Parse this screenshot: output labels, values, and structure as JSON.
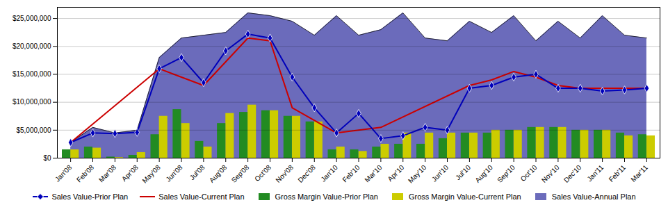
{
  "chart_data": {
    "type": "combo",
    "categories": [
      "Jan'08",
      "Feb'08",
      "Mar'08",
      "Apr'08",
      "May'08",
      "Jun'08",
      "Jul'08",
      "Aug'08",
      "Sep'08",
      "Oct'08",
      "Nov'08",
      "Dec'08",
      "Jan'10",
      "Feb'10",
      "Mar'10",
      "Apr'10",
      "May'10",
      "Jun'10",
      "Jul'10",
      "Aug'10",
      "Sep'10",
      "Oct'10",
      "Nov'10",
      "Dec'10",
      "Jan'11",
      "Feb'11",
      "Mar'11"
    ],
    "series": [
      {
        "name": "Sales Value-Prior Plan",
        "type": "line",
        "color": "#0000BB",
        "marker": "diamond",
        "values": [
          2800000,
          4500000,
          4400000,
          4600000,
          16000000,
          18000000,
          13500000,
          19200000,
          22200000,
          21500000,
          14500000,
          9000000,
          4500000,
          8000000,
          3500000,
          4000000,
          5500000,
          5000000,
          12500000,
          13000000,
          14500000,
          15000000,
          12500000,
          12500000,
          12000000,
          12200000,
          12500000
        ]
      },
      {
        "name": "Sales Value-Current Plan",
        "type": "line",
        "color": "#CC0000",
        "x": [
          "Jan'08",
          "May'08",
          "Jul'08",
          "Sep'08",
          "Oct'08",
          "Nov'08",
          "Jan'10",
          "Mar'10",
          "Jul'10",
          "Aug'10",
          "Sep'10",
          "Oct'10",
          "Nov'10",
          "Dec'10",
          "Mar'11"
        ],
        "values": [
          2800000,
          16000000,
          13000000,
          21500000,
          21000000,
          9000000,
          4500000,
          5500000,
          13000000,
          14000000,
          15500000,
          14500000,
          13000000,
          12500000,
          12500000
        ]
      },
      {
        "name": "Gross Margin Value-Prior Plan",
        "type": "bar",
        "color": "#228B22",
        "values": [
          1500000,
          2000000,
          200000,
          500000,
          4200000,
          8700000,
          3000000,
          6200000,
          8200000,
          8500000,
          7500000,
          6500000,
          1500000,
          1500000,
          2000000,
          2500000,
          2500000,
          3500000,
          4500000,
          4500000,
          5000000,
          5500000,
          5500000,
          5000000,
          5000000,
          4500000,
          4200000
        ]
      },
      {
        "name": "Gross Margin Value-Current Plan",
        "type": "bar",
        "color": "#CCCC00",
        "values": [
          1500000,
          1800000,
          100000,
          1000000,
          7500000,
          6200000,
          2000000,
          8000000,
          9500000,
          8500000,
          7500000,
          6500000,
          2000000,
          1200000,
          2500000,
          4500000,
          4500000,
          4500000,
          4500000,
          5000000,
          5000000,
          5500000,
          5500000,
          5000000,
          5000000,
          4000000,
          4000000
        ]
      },
      {
        "name": "Sales Value-Annual Plan",
        "type": "area",
        "color": "#6B6BBB",
        "values": [
          2800000,
          5500000,
          4500000,
          5000000,
          18000000,
          21500000,
          22000000,
          22500000,
          26000000,
          25500000,
          24500000,
          22000000,
          25500000,
          22000000,
          23000000,
          26000000,
          21500000,
          21000000,
          24500000,
          22500000,
          25500000,
          21000000,
          24500000,
          21500000,
          25500000,
          22000000,
          21500000
        ]
      }
    ],
    "ylim": [
      0,
      27000000
    ],
    "yticks": [
      {
        "value": 0,
        "label": "$0"
      },
      {
        "value": 5000000,
        "label": "$5,000,000"
      },
      {
        "value": 10000000,
        "label": "$10,000,000"
      },
      {
        "value": 15000000,
        "label": "$15,000,000"
      },
      {
        "value": 20000000,
        "label": "$20,000,000"
      },
      {
        "value": 25000000,
        "label": "$25,000,000"
      }
    ],
    "grid": true,
    "legend": "bottom"
  }
}
